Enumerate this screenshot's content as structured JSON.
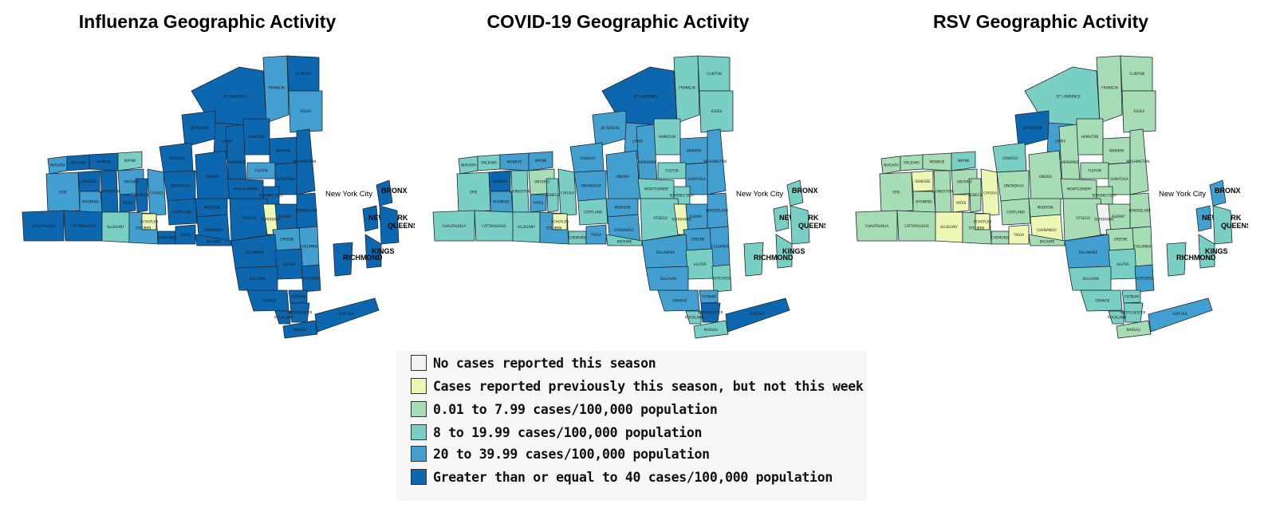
{
  "colors": {
    "none": "#f3f3f3",
    "previous": "#eef7b3",
    "c1": "#a7ddb5",
    "c2": "#79cfc3",
    "c3": "#429fcf",
    "c4": "#0d67ae"
  },
  "maps": [
    {
      "title": "Influenza Geographic Activity",
      "regions": [
        "c3",
        "c4",
        "c4",
        "c2",
        "c4",
        "c3",
        "c4",
        "c4",
        "c4",
        "c3",
        "c4",
        "c4",
        "c4",
        "c4",
        "c4",
        "c4",
        "c3",
        "c4",
        "c4",
        "c4",
        "c4",
        "c4",
        "c4",
        "c4",
        "c3",
        "c4",
        "c3",
        "c4",
        "c3",
        "c4",
        "c4",
        "c3",
        "c4",
        "c4",
        "c4",
        "previous",
        "c3",
        "c3",
        "c4",
        "c4",
        "c2",
        "c3",
        "c4",
        "c4",
        "c4",
        "c4",
        "c4",
        "c4",
        "c4",
        "c4",
        "c4",
        "c4",
        "c4",
        "c4",
        "c4",
        "previous"
      ],
      "nyc": [
        "c4",
        "c4",
        "c4",
        "c4",
        "c4"
      ]
    },
    {
      "title": "COVID-19 Geographic Activity",
      "regions": [
        "c2",
        "c2",
        "c3",
        "c3",
        "c4",
        "c2",
        "c2",
        "c3",
        "c3",
        "c2",
        "c2",
        "c3",
        "c3",
        "c3",
        "c3",
        "c3",
        "c2",
        "c3",
        "c3",
        "c3",
        "c2",
        "c2",
        "c3",
        "c3",
        "c2",
        "c4",
        "c3",
        "c2",
        "c1",
        "c3",
        "c2",
        "c2",
        "c2",
        "c3",
        "c2",
        "previous",
        "c3",
        "c3",
        "c2",
        "c2",
        "c2",
        "c3",
        "c2",
        "c3",
        "c2",
        "c3",
        "c2",
        "c2",
        "c3",
        "c3",
        "c3",
        "c4",
        "c2",
        "c2",
        "c4",
        "previous"
      ],
      "nyc": [
        "c2",
        "c2",
        "c2",
        "c2",
        "c2"
      ]
    },
    {
      "title": "RSV Geographic Activity",
      "regions": [
        "c1",
        "c1",
        "c1",
        "c2",
        "c2",
        "c1",
        "c1",
        "c4",
        "c3",
        "c1",
        "c1",
        "c1",
        "c1",
        "c2",
        "c1",
        "c1",
        "c1",
        "c1",
        "c1",
        "c1",
        "c1",
        "c1",
        "c1",
        "c1",
        "c1",
        "previous",
        "c1",
        "c1",
        "c1",
        "previous",
        "c1",
        "previous",
        "c1",
        "previous",
        "c1",
        "none",
        "c1",
        "c1",
        "c1",
        "c1",
        "previous",
        "c1",
        "c1",
        "previous",
        "c1",
        "c3",
        "c2",
        "c3",
        "c2",
        "c2",
        "c2",
        "c2",
        "c2",
        "c1",
        "c3",
        "previous"
      ],
      "nyc": [
        "c3",
        "c3",
        "c2",
        "c2",
        "c2"
      ]
    }
  ],
  "county_names": [
    "NIAGARA",
    "ORLEANS",
    "MONROE",
    "WAYNE",
    "ST LAWRENCE",
    "FRANKLIN",
    "CLINTON",
    "JEFFERSON",
    "LEWIS",
    "ESSEX",
    "HAMILTON",
    "WARREN",
    "WASHINGTON",
    "OSWEGO",
    "ONEIDA",
    "HERKIMER",
    "FULTON",
    "SARATOGA",
    "ONONDAGA",
    "MADISON",
    "MONTGOMERY",
    "SCHENECTADY",
    "RENSSELAER",
    "ALBANY",
    "ERIE",
    "GENESEE",
    "WYOMING",
    "LIVINGSTON",
    "ONTARIO",
    "YATES",
    "SENECA",
    "CAYUGA",
    "CORTLAND",
    "CHENANGO",
    "OTSEGO",
    "SCHOHARIE",
    "GREENE",
    "COLUMBIA",
    "CHAUTAUQUA",
    "CATTARAUGUS",
    "ALLEGANY",
    "STEUBEN",
    "CHEMUNG",
    "TIOGA",
    "BROOME",
    "DELAWARE",
    "ULSTER",
    "DUTCHESS",
    "SULLIVAN",
    "ORANGE",
    "PUTNAM",
    "WESTCHESTER",
    "ROCKLAND",
    "NASSAU",
    "SUFFOLK",
    "SCHUYLER"
  ],
  "nyc_title": "New York City",
  "nyc_names": [
    "BRONX",
    "NEW YORK",
    "QUEENS",
    "KINGS",
    "RICHMOND"
  ],
  "legend": [
    {
      "label": "No cases reported this season",
      "color": "#f3f3f3"
    },
    {
      "label": "Cases reported previously this season, but not this week",
      "color": "#eef7b3"
    },
    {
      "label": "0.01 to 7.99 cases/100,000 population",
      "color": "#a7ddb5"
    },
    {
      "label": "8 to 19.99 cases/100,000 population",
      "color": "#79cfc3"
    },
    {
      "label": "20 to 39.99 cases/100,000 population",
      "color": "#429fcf"
    },
    {
      "label": "Greater than or equal to 40 cases/100,000 population",
      "color": "#0d67ae"
    }
  ]
}
